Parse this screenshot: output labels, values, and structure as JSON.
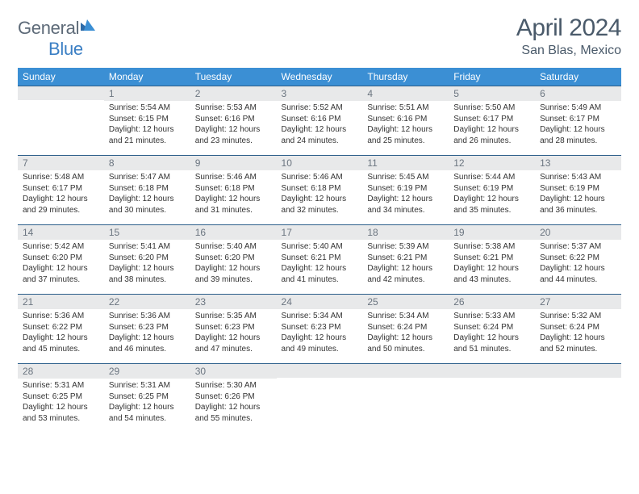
{
  "logo": {
    "word1": "General",
    "word2": "Blue"
  },
  "title": "April 2024",
  "location": "San Blas, Mexico",
  "colors": {
    "header_bg": "#3b8fd4",
    "header_text": "#ffffff",
    "daybar_bg": "#e8e9ea",
    "daybar_text": "#6b7580",
    "daybar_border": "#2b5e8a",
    "body_text": "#333333",
    "title_text": "#4a5a6a",
    "logo_general": "#5d6a78",
    "logo_blue": "#3b7fc4"
  },
  "weekdays": [
    "Sunday",
    "Monday",
    "Tuesday",
    "Wednesday",
    "Thursday",
    "Friday",
    "Saturday"
  ],
  "layout": {
    "start_weekday": 1,
    "days_in_month": 30,
    "rows": 5,
    "cols": 7
  },
  "days": {
    "1": {
      "sunrise": "5:54 AM",
      "sunset": "6:15 PM",
      "daylight": "12 hours and 21 minutes."
    },
    "2": {
      "sunrise": "5:53 AM",
      "sunset": "6:16 PM",
      "daylight": "12 hours and 23 minutes."
    },
    "3": {
      "sunrise": "5:52 AM",
      "sunset": "6:16 PM",
      "daylight": "12 hours and 24 minutes."
    },
    "4": {
      "sunrise": "5:51 AM",
      "sunset": "6:16 PM",
      "daylight": "12 hours and 25 minutes."
    },
    "5": {
      "sunrise": "5:50 AM",
      "sunset": "6:17 PM",
      "daylight": "12 hours and 26 minutes."
    },
    "6": {
      "sunrise": "5:49 AM",
      "sunset": "6:17 PM",
      "daylight": "12 hours and 28 minutes."
    },
    "7": {
      "sunrise": "5:48 AM",
      "sunset": "6:17 PM",
      "daylight": "12 hours and 29 minutes."
    },
    "8": {
      "sunrise": "5:47 AM",
      "sunset": "6:18 PM",
      "daylight": "12 hours and 30 minutes."
    },
    "9": {
      "sunrise": "5:46 AM",
      "sunset": "6:18 PM",
      "daylight": "12 hours and 31 minutes."
    },
    "10": {
      "sunrise": "5:46 AM",
      "sunset": "6:18 PM",
      "daylight": "12 hours and 32 minutes."
    },
    "11": {
      "sunrise": "5:45 AM",
      "sunset": "6:19 PM",
      "daylight": "12 hours and 34 minutes."
    },
    "12": {
      "sunrise": "5:44 AM",
      "sunset": "6:19 PM",
      "daylight": "12 hours and 35 minutes."
    },
    "13": {
      "sunrise": "5:43 AM",
      "sunset": "6:19 PM",
      "daylight": "12 hours and 36 minutes."
    },
    "14": {
      "sunrise": "5:42 AM",
      "sunset": "6:20 PM",
      "daylight": "12 hours and 37 minutes."
    },
    "15": {
      "sunrise": "5:41 AM",
      "sunset": "6:20 PM",
      "daylight": "12 hours and 38 minutes."
    },
    "16": {
      "sunrise": "5:40 AM",
      "sunset": "6:20 PM",
      "daylight": "12 hours and 39 minutes."
    },
    "17": {
      "sunrise": "5:40 AM",
      "sunset": "6:21 PM",
      "daylight": "12 hours and 41 minutes."
    },
    "18": {
      "sunrise": "5:39 AM",
      "sunset": "6:21 PM",
      "daylight": "12 hours and 42 minutes."
    },
    "19": {
      "sunrise": "5:38 AM",
      "sunset": "6:21 PM",
      "daylight": "12 hours and 43 minutes."
    },
    "20": {
      "sunrise": "5:37 AM",
      "sunset": "6:22 PM",
      "daylight": "12 hours and 44 minutes."
    },
    "21": {
      "sunrise": "5:36 AM",
      "sunset": "6:22 PM",
      "daylight": "12 hours and 45 minutes."
    },
    "22": {
      "sunrise": "5:36 AM",
      "sunset": "6:23 PM",
      "daylight": "12 hours and 46 minutes."
    },
    "23": {
      "sunrise": "5:35 AM",
      "sunset": "6:23 PM",
      "daylight": "12 hours and 47 minutes."
    },
    "24": {
      "sunrise": "5:34 AM",
      "sunset": "6:23 PM",
      "daylight": "12 hours and 49 minutes."
    },
    "25": {
      "sunrise": "5:34 AM",
      "sunset": "6:24 PM",
      "daylight": "12 hours and 50 minutes."
    },
    "26": {
      "sunrise": "5:33 AM",
      "sunset": "6:24 PM",
      "daylight": "12 hours and 51 minutes."
    },
    "27": {
      "sunrise": "5:32 AM",
      "sunset": "6:24 PM",
      "daylight": "12 hours and 52 minutes."
    },
    "28": {
      "sunrise": "5:31 AM",
      "sunset": "6:25 PM",
      "daylight": "12 hours and 53 minutes."
    },
    "29": {
      "sunrise": "5:31 AM",
      "sunset": "6:25 PM",
      "daylight": "12 hours and 54 minutes."
    },
    "30": {
      "sunrise": "5:30 AM",
      "sunset": "6:26 PM",
      "daylight": "12 hours and 55 minutes."
    }
  },
  "labels": {
    "sunrise": "Sunrise:",
    "sunset": "Sunset:",
    "daylight": "Daylight:"
  }
}
